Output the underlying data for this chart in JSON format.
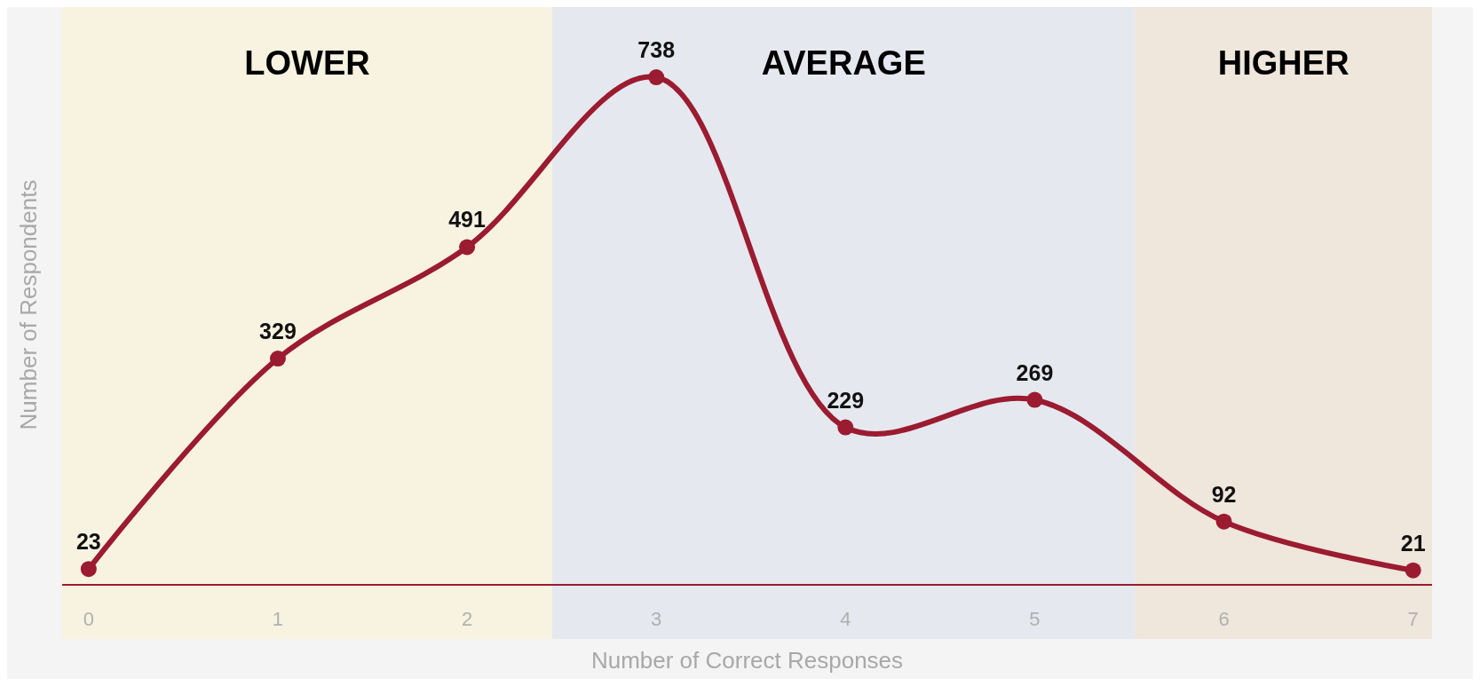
{
  "chart_data": {
    "type": "line",
    "xlabel": "Number of Correct Responses",
    "ylabel": "Number of Respondents",
    "x": [
      0,
      1,
      2,
      3,
      4,
      5,
      6,
      7
    ],
    "xlim": [
      -0.14,
      7.1
    ],
    "xticks": [
      0,
      1,
      2,
      3,
      4,
      5,
      6,
      7
    ],
    "ylim": [
      0,
      840
    ],
    "tick_labels": "x",
    "series": [
      {
        "color": "#9b1b30",
        "values": [
          23,
          329,
          491,
          738,
          229,
          269,
          92,
          21
        ]
      }
    ],
    "data_labels": true,
    "marker": "circle",
    "bands": [
      {
        "axis": "x",
        "from": -0.14,
        "to": 2.45,
        "label": "LOWER",
        "color": "#f7f3e0"
      },
      {
        "axis": "x",
        "from": 2.45,
        "to": 5.53,
        "label": "AVERAGE",
        "color": "#e5e8ef"
      },
      {
        "axis": "x",
        "from": 5.53,
        "to": 7.1,
        "label": "HIGHER",
        "color": "#efe6dc"
      }
    ]
  }
}
